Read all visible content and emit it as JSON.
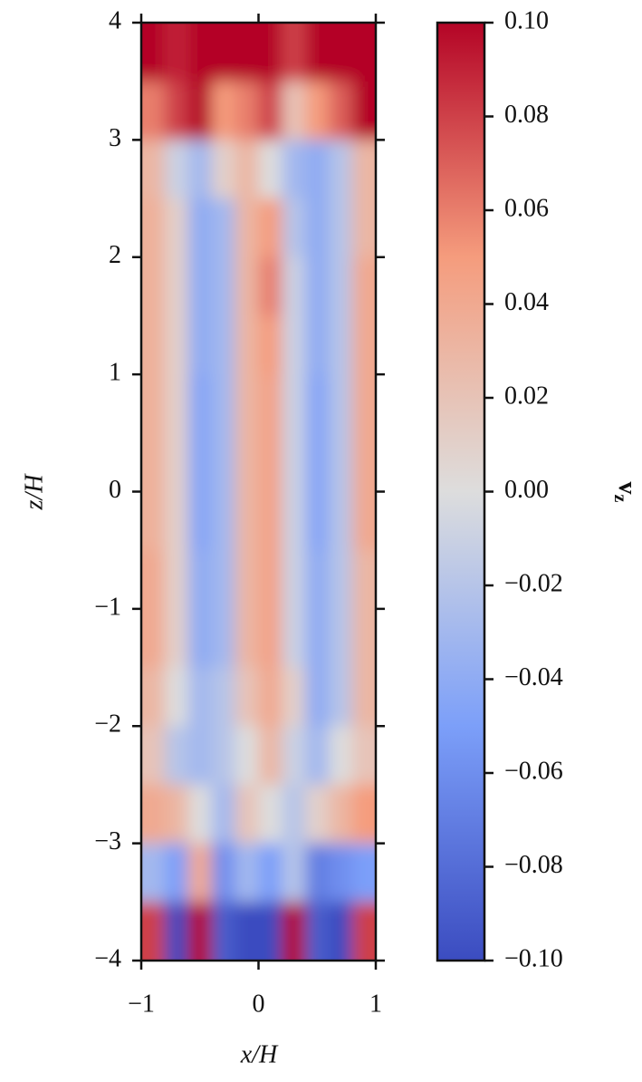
{
  "chart_data": {
    "type": "heatmap",
    "colormap": "coolwarm",
    "clim": [
      -0.1,
      0.1
    ],
    "x": [
      -0.9,
      -0.7,
      -0.5,
      -0.3,
      -0.1,
      0.1,
      0.3,
      0.5,
      0.7,
      0.9
    ],
    "y": [
      3.75,
      3.25,
      2.75,
      2.25,
      1.75,
      1.25,
      0.75,
      0.25,
      -0.25,
      -0.75,
      -1.25,
      -1.75,
      -2.25,
      -2.75,
      -3.25,
      -3.75
    ],
    "values": [
      [
        0.1,
        0.09,
        0.1,
        0.1,
        0.1,
        0.1,
        0.08,
        0.1,
        0.1,
        0.1
      ],
      [
        0.06,
        0.08,
        0.1,
        0.05,
        0.06,
        0.08,
        0.02,
        0.05,
        0.07,
        0.1
      ],
      [
        0.03,
        -0.01,
        -0.03,
        0.01,
        0.03,
        0.0,
        -0.03,
        -0.04,
        -0.02,
        0.03
      ],
      [
        0.035,
        0.01,
        -0.04,
        -0.03,
        0.03,
        0.05,
        -0.02,
        -0.04,
        -0.02,
        0.03
      ],
      [
        0.035,
        0.01,
        -0.04,
        -0.03,
        0.03,
        0.06,
        -0.01,
        -0.04,
        -0.02,
        0.04
      ],
      [
        0.035,
        0.01,
        -0.04,
        -0.03,
        0.03,
        0.05,
        -0.01,
        -0.04,
        -0.02,
        0.04
      ],
      [
        0.035,
        0.01,
        -0.045,
        -0.03,
        0.03,
        0.045,
        -0.01,
        -0.045,
        -0.02,
        0.04
      ],
      [
        0.035,
        0.01,
        -0.045,
        -0.03,
        0.03,
        0.045,
        -0.01,
        -0.045,
        -0.02,
        0.04
      ],
      [
        0.035,
        0.01,
        -0.045,
        -0.03,
        0.03,
        0.045,
        -0.01,
        -0.045,
        -0.02,
        0.04
      ],
      [
        0.04,
        0.01,
        -0.04,
        -0.03,
        0.03,
        0.045,
        -0.01,
        -0.04,
        -0.02,
        0.03
      ],
      [
        0.04,
        0.01,
        -0.04,
        -0.03,
        0.03,
        0.045,
        -0.01,
        -0.04,
        -0.02,
        0.03
      ],
      [
        0.03,
        0.0,
        -0.03,
        -0.02,
        0.02,
        0.04,
        0.01,
        -0.04,
        -0.02,
        0.03
      ],
      [
        0.02,
        -0.02,
        -0.03,
        -0.02,
        0.0,
        0.03,
        -0.01,
        -0.03,
        0.0,
        0.02
      ],
      [
        0.04,
        0.03,
        0.0,
        -0.03,
        0.02,
        0.0,
        -0.02,
        0.01,
        0.03,
        0.05
      ],
      [
        -0.03,
        -0.05,
        0.04,
        -0.06,
        -0.03,
        -0.05,
        -0.02,
        -0.07,
        -0.06,
        -0.05
      ],
      [
        0.08,
        -0.1,
        0.1,
        -0.09,
        -0.1,
        -0.1,
        0.1,
        -0.09,
        -0.1,
        0.08
      ]
    ],
    "xlim": [
      -1,
      1
    ],
    "ylim": [
      -4,
      4
    ],
    "xticks": [
      {
        "value": -1,
        "label": "−1"
      },
      0,
      1
    ],
    "yticks": [
      {
        "value": -4,
        "label": "−4"
      },
      {
        "value": -3,
        "label": "−3"
      },
      {
        "value": -2,
        "label": "−2"
      },
      {
        "value": -1,
        "label": "−1"
      },
      0,
      1,
      2,
      3,
      4
    ],
    "xlabel": "x/H",
    "ylabel": "z/H",
    "colorbar_label": {
      "symbol": "v",
      "subscript": "z"
    },
    "colorbar_ticks": [
      {
        "value": -0.1,
        "label": "−0.10"
      },
      {
        "value": -0.08,
        "label": "−0.08"
      },
      {
        "value": -0.06,
        "label": "−0.06"
      },
      {
        "value": -0.04,
        "label": "−0.04"
      },
      {
        "value": -0.02,
        "label": "−0.02"
      },
      {
        "value": 0,
        "label": "0.00"
      },
      {
        "value": 0.02,
        "label": "0.02"
      },
      {
        "value": 0.04,
        "label": "0.04"
      },
      {
        "value": 0.06,
        "label": "0.06"
      },
      {
        "value": 0.08,
        "label": "0.08"
      },
      {
        "value": 0.1,
        "label": "0.10"
      }
    ]
  }
}
